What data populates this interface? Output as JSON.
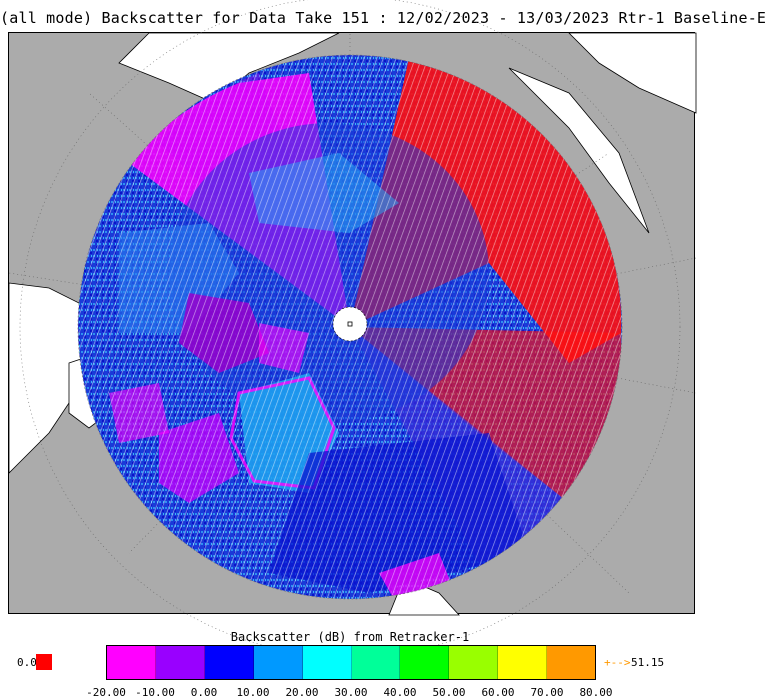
{
  "title": "(all mode) Backscatter for Data Take 151 : 12/02/2023 - 13/03/2023 Rtr-1 Baseline-E",
  "map": {
    "projection": "north-polar-stereographic",
    "land_color": "#ffffff",
    "ocean_color": "#ababab",
    "pole_marker": "white circle at north pole"
  },
  "colorbar": {
    "title": "Backscatter (dB) from Retracker-1",
    "colors": [
      "#ff00ff",
      "#9900ff",
      "#0000ff",
      "#0099ff",
      "#00ffff",
      "#00ff99",
      "#00ff00",
      "#99ff00",
      "#ffff00",
      "#ff9900"
    ],
    "ticks": [
      "-20.00",
      "-10.00",
      "0.00",
      "10.00",
      "20.00",
      "30.00",
      "40.00",
      "50.00",
      "60.00",
      "70.00",
      "80.00"
    ],
    "under_value": "0.0",
    "under_color": "#ff0000",
    "over_arrow": "+-->",
    "over_value": "51.15",
    "over_color": "#ff9900"
  }
}
